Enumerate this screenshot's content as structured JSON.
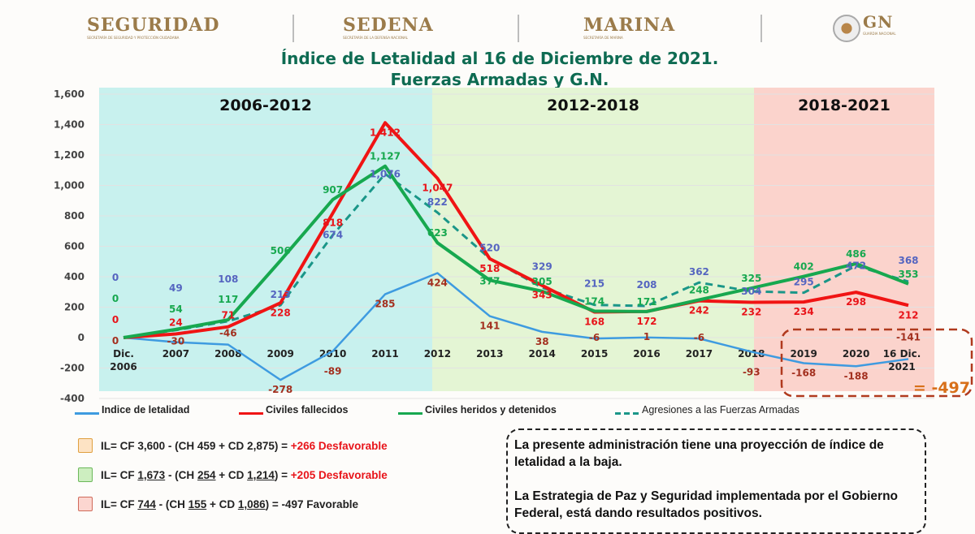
{
  "header": {
    "logos": [
      {
        "name": "SEGURIDAD",
        "sub": "SECRETARÍA DE SEGURIDAD Y PROTECCIÓN CIUDADANA"
      },
      {
        "name": "SEDENA",
        "sub": "SECRETARÍA DE LA DEFENSA NACIONAL"
      },
      {
        "name": "MARINA",
        "sub": "SECRETARÍA DE MARINA"
      },
      {
        "name": "GN",
        "sub": "GUARDIA NACIONAL"
      }
    ],
    "title_line1": "Índice de Letalidad al 16 de Diciembre de 2021.",
    "title_line2": "Fuerzas Armadas y G.N."
  },
  "chart_data": {
    "type": "line",
    "title": "Índice de Letalidad al 16 de Diciembre de 2021. Fuerzas Armadas y G.N.",
    "categories": [
      "Dic. 2006",
      "2007",
      "2008",
      "2009",
      "2010",
      "2011",
      "2012",
      "2013",
      "2014",
      "2015",
      "2016",
      "2017",
      "2018",
      "2019",
      "2020",
      "16 Dic. 2021"
    ],
    "ylim": [
      -400,
      1600
    ],
    "yticks": [
      "-400",
      "-200",
      "0",
      "200",
      "400",
      "600",
      "800",
      "1,000",
      "1,200",
      "1,400",
      "1,600"
    ],
    "grid": true,
    "periods": [
      {
        "label": "2006-2012",
        "from": "Dic. 2006",
        "to": "2012",
        "color": "#c8f1ee"
      },
      {
        "label": "2012-2018",
        "from": "2012",
        "to": "2018",
        "color": "#e4f5d4"
      },
      {
        "label": "2018-2021",
        "from": "2018",
        "to": "16 Dic. 2021",
        "color": "#fbd3cc"
      }
    ],
    "series": [
      {
        "name": "Indice de letalidad",
        "color": "#3e9be0",
        "label_color": "#a3301f",
        "dashed": false,
        "values": [
          0,
          -30,
          -46,
          -278,
          -89,
          285,
          424,
          141,
          38,
          -6,
          1,
          -6,
          -93,
          -168,
          -188,
          -141
        ]
      },
      {
        "name": "Civiles fallecidos",
        "color": "#f01414",
        "label_color": "#e8141a",
        "dashed": false,
        "values": [
          0,
          24,
          71,
          228,
          818,
          1412,
          1047,
          518,
          343,
          168,
          172,
          242,
          232,
          234,
          298,
          212
        ]
      },
      {
        "name": "Civiles heridos y detenidos",
        "color": "#17a84f",
        "label_color": "#17a84f",
        "dashed": false,
        "values": [
          0,
          54,
          117,
          506,
          907,
          1127,
          623,
          377,
          305,
          174,
          171,
          248,
          325,
          402,
          486,
          353
        ]
      },
      {
        "name": "Agresiones a las Fuerzas Armadas",
        "color": "#1a9688",
        "label_color": "#5565c0",
        "dashed": true,
        "values": [
          0,
          49,
          108,
          213,
          674,
          1076,
          822,
          520,
          329,
          215,
          208,
          362,
          304,
          295,
          472,
          368
        ]
      }
    ],
    "annotation": "= -497",
    "legend_position": "bottom"
  },
  "formulas": [
    {
      "box_border": "#e0a040",
      "box_fill": "#fde3c4",
      "parts": [
        {
          "t": "IL= CF 3,600 - (CH 459 + CD 2,875) = "
        },
        {
          "t": "+266  Desfavorable",
          "red": true
        }
      ]
    },
    {
      "box_border": "#6cb85a",
      "box_fill": "#cdeec0",
      "parts": [
        {
          "t": "IL= CF "
        },
        {
          "t": "1,673",
          "u": true
        },
        {
          "t": " - (CH "
        },
        {
          "t": "254",
          "u": true
        },
        {
          "t": " + CD "
        },
        {
          "t": "1,214",
          "u": true
        },
        {
          "t": ") = "
        },
        {
          "t": "+205  Desfavorable",
          "red": true
        }
      ]
    },
    {
      "box_border": "#d06a5a",
      "box_fill": "#fcd6d0",
      "parts": [
        {
          "t": "IL= CF "
        },
        {
          "t": "744",
          "u": true
        },
        {
          "t": " - (CH "
        },
        {
          "t": "155",
          "u": true
        },
        {
          "t": " + CD "
        },
        {
          "t": "1,086",
          "u": true
        },
        {
          "t": ") = -497  Favorable"
        }
      ]
    }
  ],
  "message": {
    "p1": "La presente administración tiene una proyección de índice de letalidad a la baja.",
    "p2": "La Estrategia de Paz y Seguridad implementada por el Gobierno Federal, está dando resultados positivos."
  }
}
